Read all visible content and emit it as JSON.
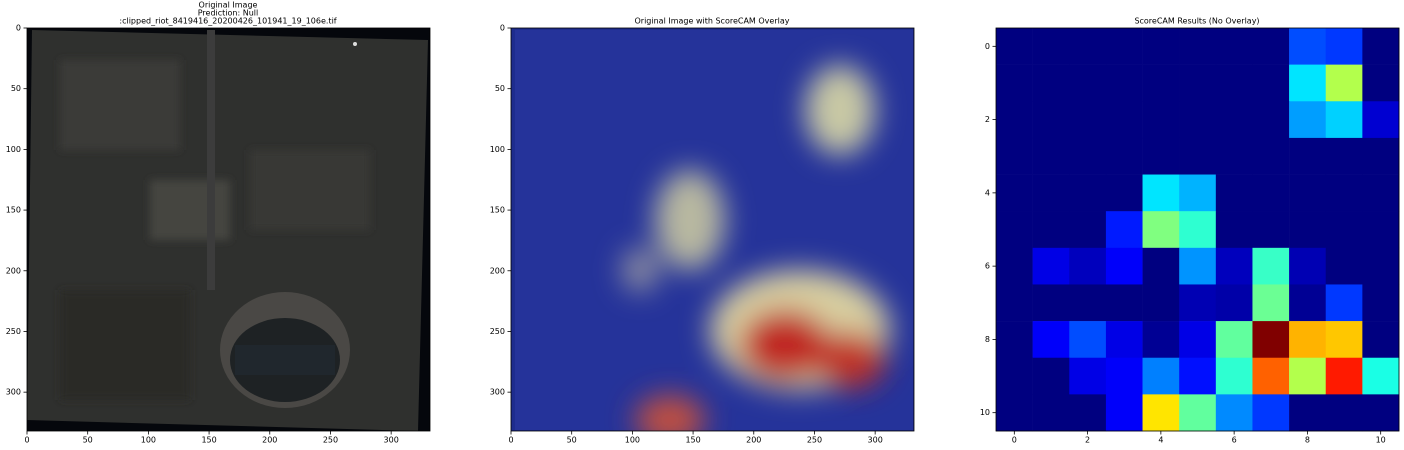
{
  "chart_data": [
    {
      "type": "image",
      "title": [
        "Original Image",
        "Prediction: Null",
        ":clipped_riot_8419416_20200426_101941_19_106e.tif"
      ],
      "xlim": [
        0,
        332
      ],
      "ylim": [
        332,
        0
      ],
      "xticks": [
        0,
        50,
        100,
        150,
        200,
        250,
        300
      ],
      "yticks": [
        0,
        50,
        100,
        150,
        200,
        250,
        300
      ]
    },
    {
      "type": "overlay",
      "title": [
        "Original Image with ScoreCAM Overlay"
      ],
      "xlim": [
        0,
        332
      ],
      "ylim": [
        332,
        0
      ],
      "xticks": [
        0,
        50,
        100,
        150,
        200,
        250,
        300
      ],
      "yticks": [
        0,
        50,
        100,
        150,
        200,
        250,
        300
      ]
    },
    {
      "type": "heatmap",
      "title": [
        "ScoreCAM Results (No Overlay)"
      ],
      "colormap": "jet",
      "xlim": [
        -0.5,
        10.5
      ],
      "ylim": [
        10.5,
        -0.5
      ],
      "xticks": [
        0,
        2,
        4,
        6,
        8,
        10
      ],
      "yticks": [
        0,
        2,
        4,
        6,
        8,
        10
      ],
      "values": [
        [
          0,
          0,
          0,
          0,
          0,
          0,
          0,
          0,
          0.2,
          0.18,
          0
        ],
        [
          0,
          0,
          0,
          0,
          0,
          0,
          0,
          0,
          0.35,
          0.55,
          0
        ],
        [
          0,
          0,
          0,
          0,
          0,
          0,
          0,
          0,
          0.28,
          0.33,
          0.08
        ],
        [
          0,
          0,
          0,
          0,
          0,
          0,
          0,
          0,
          0,
          0,
          0
        ],
        [
          0,
          0,
          0,
          0,
          0.35,
          0.3,
          0,
          0,
          0,
          0,
          0
        ],
        [
          0,
          0,
          0,
          0.15,
          0.5,
          0.42,
          0,
          0,
          0,
          0,
          0
        ],
        [
          0,
          0.1,
          0.06,
          0.12,
          0,
          0.27,
          0.06,
          0.43,
          0.05,
          0,
          0
        ],
        [
          0,
          0,
          0,
          0,
          0,
          0.05,
          0.04,
          0.48,
          0.02,
          0.18,
          0
        ],
        [
          0,
          0.12,
          0.2,
          0.1,
          0.02,
          0.1,
          0.47,
          1.0,
          0.7,
          0.68,
          0
        ],
        [
          0,
          0,
          0.1,
          0.12,
          0.25,
          0.14,
          0.42,
          0.78,
          0.55,
          0.85,
          0.4
        ],
        [
          0,
          0,
          0,
          0.12,
          0.65,
          0.47,
          0.26,
          0.18,
          0,
          0,
          0
        ]
      ]
    }
  ]
}
